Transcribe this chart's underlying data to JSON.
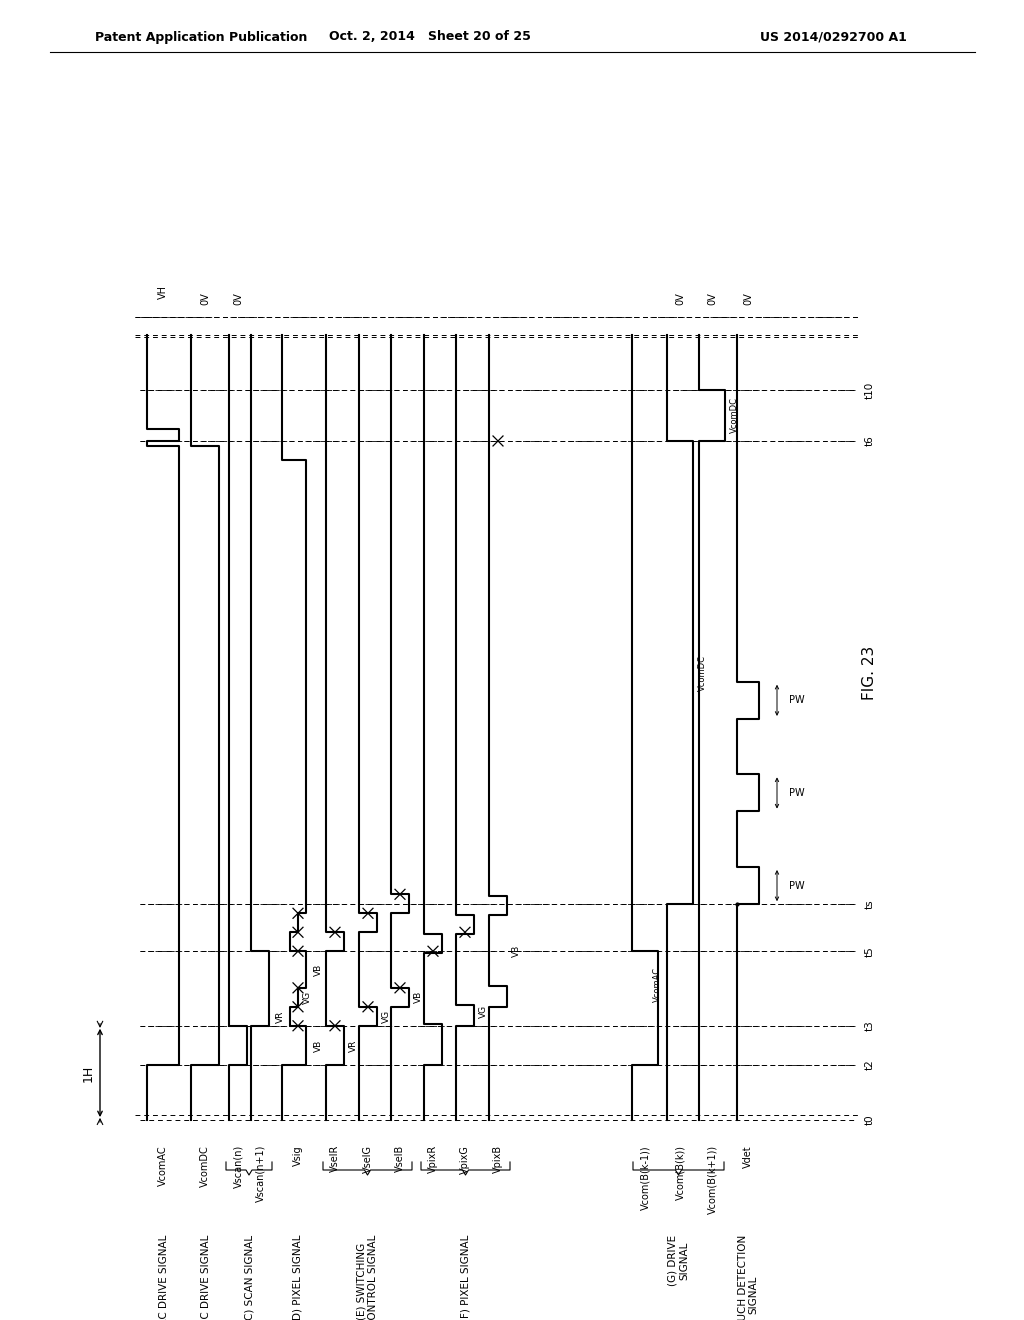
{
  "header_left": "Patent Application Publication",
  "header_center": "Oct. 2, 2014   Sheet 20 of 25",
  "header_right": "US 2014/0292700 A1",
  "fig_label": "FIG. 23",
  "background": "#ffffff",
  "signal_names": [
    "VcomAC",
    "VcomDC",
    "Vscan(n)",
    "Vscan(n+1)",
    "Vsig",
    "VselR",
    "VselG",
    "VselB",
    "VpixR",
    "VpixG",
    "VpixB",
    "Vcom(B(k-1))",
    "Vcom(B(k))",
    "Vcom(B(k+1))",
    "Vdet"
  ],
  "group_labels": [
    "(A) AC DRIVE SIGNAL",
    "(B) DC DRIVE SIGNAL",
    "(C) SCAN SIGNAL",
    "(D) PIXEL SIGNAL",
    "(E) SWITCHING\nCONTROL SIGNAL",
    "(F) PIXEL SIGNAL",
    "(G) DRIVE\nSIGNAL",
    "(H) TOUCH DETECTION\nSIGNAL"
  ],
  "time_labels": [
    "t0",
    "t2",
    "t3",
    "t5",
    "ts",
    "t6",
    "t10"
  ],
  "volt_labels_top_left": [
    "VH",
    "0V",
    "0V"
  ],
  "volt_labels_top_right": [
    "0V",
    "0V",
    "0V"
  ]
}
